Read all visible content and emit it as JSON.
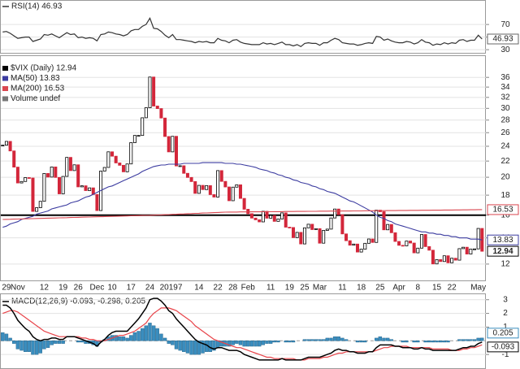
{
  "chart_data": {
    "type": "stock",
    "categories": [
      null,
      "29",
      null,
      null,
      "Nov",
      null,
      null,
      null,
      null,
      null,
      null,
      "12",
      null,
      null,
      null,
      null,
      "19",
      null,
      null,
      null,
      "26",
      null,
      null,
      null,
      null,
      "Dec",
      null,
      null,
      null,
      "10",
      null,
      null,
      null,
      null,
      "17",
      null,
      null,
      null,
      null,
      "24",
      null,
      null,
      null,
      null,
      "2019",
      null,
      null,
      "7",
      null,
      null,
      null,
      null,
      "14",
      null,
      null,
      null,
      null,
      "22",
      null,
      null,
      null,
      "28",
      null,
      null,
      null,
      "Feb",
      null,
      null,
      null,
      null,
      null,
      "11",
      null,
      null,
      null,
      null,
      "19",
      null,
      null,
      null,
      "25",
      null,
      null,
      null,
      "Mar",
      null,
      null,
      null,
      null,
      null,
      "11",
      null,
      null,
      null,
      null,
      "18",
      null,
      null,
      null,
      null,
      "25",
      null,
      null,
      null,
      null,
      "Apr",
      null,
      null,
      null,
      null,
      "8",
      null,
      null,
      null,
      null,
      "15",
      null,
      null,
      null,
      "22",
      null,
      null,
      null,
      null,
      null,
      null,
      "May",
      null
    ],
    "rsi": {
      "title": "RSI(14) 46.93",
      "color": "#333333",
      "ylim": [
        25,
        105
      ],
      "yticks": [
        70,
        50,
        30
      ],
      "values": [
        58,
        59,
        56,
        52,
        48,
        49,
        50,
        50,
        43,
        45,
        47,
        54,
        53,
        55,
        52,
        49,
        53,
        57,
        54,
        55,
        49,
        50,
        48,
        49,
        48,
        44,
        54,
        55,
        58,
        57,
        55,
        54,
        52,
        54,
        60,
        62,
        62,
        67,
        70,
        80,
        64,
        63,
        59,
        53,
        49,
        54,
        46,
        46,
        45,
        44,
        43,
        41,
        43,
        42,
        43,
        41,
        41,
        48,
        45,
        44,
        41,
        45,
        46,
        42,
        40,
        39,
        38,
        38,
        38,
        41,
        39,
        40,
        38,
        40,
        42,
        38,
        38,
        36,
        38,
        35,
        40,
        41,
        40,
        40,
        37,
        41,
        41,
        45,
        48,
        46,
        41,
        40,
        39,
        39,
        37,
        38,
        40,
        41,
        40,
        51,
        50,
        45,
        47,
        44,
        42,
        41,
        41,
        43,
        42,
        39,
        41,
        46,
        42,
        41,
        37,
        39,
        38,
        41,
        39,
        41,
        40,
        45,
        46,
        43,
        45,
        45,
        53,
        46.93
      ]
    },
    "price": {
      "log_scale": true,
      "grid": true,
      "ylim": [
        10.9,
        41
      ],
      "yticks": [
        12,
        14,
        16,
        18,
        20,
        22,
        24,
        26,
        28,
        30,
        32,
        34,
        36
      ],
      "hline": 16,
      "hline_color": "#000000",
      "volume_label": "Volume undef",
      "close": {
        "name": "$VIX (Daily) 12.94",
        "up_color": "#000000",
        "down_color": "#d3263a",
        "values": [
          24.16,
          24.7,
          23.35,
          21.23,
          19.34,
          19.51,
          19.96,
          19.91,
          16.36,
          16.72,
          17.36,
          20.45,
          20.02,
          21.25,
          19.98,
          18.14,
          20.1,
          22.48,
          20.8,
          21.52,
          18.9,
          19.02,
          18.49,
          18.79,
          18.07,
          16.44,
          20.74,
          21.19,
          23.23,
          22.64,
          21.76,
          21.46,
          20.65,
          21.63,
          24.52,
          25.58,
          25.58,
          28.38,
          30.11,
          36.07,
          30.41,
          29.96,
          28.34,
          25.42,
          23.22,
          25.45,
          21.38,
          21.4,
          20.47,
          19.98,
          19.5,
          18.19,
          19.07,
          18.6,
          19.04,
          18.06,
          17.8,
          20.8,
          19.52,
          18.89,
          17.42,
          18.87,
          19.13,
          17.66,
          16.57,
          16.14,
          15.73,
          15.57,
          15.38,
          16.37,
          15.72,
          15.97,
          15.43,
          15.65,
          16.22,
          14.91,
          14.88,
          14.02,
          14.46,
          13.51,
          14.85,
          15.17,
          14.7,
          14.78,
          13.57,
          14.63,
          14.74,
          15.74,
          16.59,
          16.05,
          14.33,
          13.77,
          13.41,
          13.5,
          12.88,
          13.1,
          13.56,
          13.91,
          13.63,
          16.48,
          16.33,
          14.68,
          15.15,
          14.43,
          13.71,
          13.4,
          13.36,
          13.74,
          13.58,
          12.82,
          13.18,
          14.28,
          13.3,
          13.02,
          12.01,
          12.32,
          12.18,
          12.6,
          12.09,
          12.42,
          12.28,
          13.14,
          13.25,
          12.73,
          13.11,
          13.12,
          14.8,
          12.94
        ]
      },
      "series": [
        {
          "name": "MA(50) 13.83",
          "color": "#3c3ca0",
          "values": [
            14.9,
            15.0,
            15.2,
            15.3,
            15.4,
            15.6,
            15.7,
            15.8,
            15.9,
            16.1,
            16.2,
            16.3,
            16.4,
            16.6,
            16.7,
            16.8,
            16.9,
            17.0,
            17.2,
            17.3,
            17.4,
            17.6,
            17.8,
            17.9,
            18.1,
            18.3,
            18.5,
            18.7,
            18.9,
            19.0,
            19.2,
            19.4,
            19.6,
            19.8,
            20.0,
            20.2,
            20.4,
            20.7,
            20.9,
            21.1,
            21.3,
            21.4,
            21.5,
            21.5,
            21.6,
            21.6,
            21.6,
            21.6,
            21.7,
            21.7,
            21.7,
            21.7,
            21.7,
            21.8,
            21.8,
            21.8,
            21.8,
            21.8,
            21.8,
            21.7,
            21.7,
            21.7,
            21.6,
            21.6,
            21.5,
            21.4,
            21.3,
            21.2,
            21.0,
            20.9,
            20.8,
            20.6,
            20.5,
            20.3,
            20.2,
            20.0,
            19.9,
            19.7,
            19.6,
            19.4,
            19.3,
            19.2,
            19.0,
            18.9,
            18.7,
            18.6,
            18.4,
            18.3,
            18.2,
            18.0,
            17.8,
            17.6,
            17.4,
            17.3,
            17.1,
            16.9,
            16.7,
            16.5,
            16.3,
            16.0,
            15.8,
            15.7,
            15.5,
            15.4,
            15.2,
            15.1,
            15.0,
            14.9,
            14.8,
            14.7,
            14.6,
            14.5,
            14.5,
            14.4,
            14.4,
            14.3,
            14.3,
            14.2,
            14.2,
            14.1,
            14.1,
            14.0,
            14.0,
            14.0,
            13.9,
            13.9,
            13.9,
            13.83
          ]
        },
        {
          "name": "MA(200) 16.53",
          "color": "#d9464f",
          "values": [
            15.6,
            15.61,
            15.62,
            15.63,
            15.64,
            15.65,
            15.66,
            15.67,
            15.68,
            15.69,
            15.7,
            15.71,
            15.72,
            15.73,
            15.74,
            15.75,
            15.76,
            15.77,
            15.78,
            15.79,
            15.8,
            15.81,
            15.82,
            15.83,
            15.84,
            15.85,
            15.86,
            15.87,
            15.88,
            15.89,
            15.9,
            15.91,
            15.92,
            15.93,
            15.94,
            15.95,
            15.96,
            15.97,
            15.98,
            15.99,
            16.0,
            16.02,
            16.03,
            16.05,
            16.06,
            16.08,
            16.09,
            16.11,
            16.12,
            16.14,
            16.15,
            16.17,
            16.18,
            16.2,
            16.21,
            16.23,
            16.24,
            16.26,
            16.27,
            16.29,
            16.3,
            16.3,
            16.3,
            16.31,
            16.31,
            16.31,
            16.32,
            16.32,
            16.32,
            16.33,
            16.33,
            16.33,
            16.34,
            16.34,
            16.34,
            16.35,
            16.35,
            16.35,
            16.36,
            16.36,
            16.36,
            16.37,
            16.37,
            16.37,
            16.38,
            16.38,
            16.38,
            16.39,
            16.39,
            16.39,
            16.4,
            16.4,
            16.4,
            16.41,
            16.41,
            16.41,
            16.42,
            16.42,
            16.42,
            16.43,
            16.43,
            16.43,
            16.44,
            16.44,
            16.44,
            16.45,
            16.45,
            16.45,
            16.46,
            16.46,
            16.46,
            16.47,
            16.47,
            16.47,
            16.48,
            16.48,
            16.48,
            16.49,
            16.49,
            16.49,
            16.5,
            16.5,
            16.51,
            16.51,
            16.52,
            16.52,
            16.53,
            16.53
          ]
        }
      ]
    },
    "macd": {
      "title": "MACD(12,26,9) -0.093, -0.298, 0.205",
      "ylim": [
        -2,
        3.4
      ],
      "yticks": [
        3,
        2,
        1,
        -1
      ],
      "macd": {
        "color": "#000000",
        "values": [
          2.6,
          2.6,
          2.4,
          2.0,
          1.5,
          1.2,
          0.9,
          0.7,
          0.3,
          0.1,
          0.0,
          0.1,
          0.1,
          0.2,
          0.2,
          0.1,
          0.1,
          0.3,
          0.3,
          0.3,
          0.2,
          0.1,
          0.0,
          -0.1,
          -0.2,
          -0.4,
          -0.1,
          0.1,
          0.4,
          0.6,
          0.7,
          0.7,
          0.7,
          0.7,
          1.0,
          1.3,
          1.6,
          2.0,
          2.4,
          3.0,
          3.1,
          3.1,
          2.9,
          2.6,
          2.2,
          2.0,
          1.6,
          1.3,
          1.0,
          0.7,
          0.4,
          0.1,
          -0.1,
          -0.2,
          -0.3,
          -0.5,
          -0.6,
          -0.5,
          -0.5,
          -0.6,
          -0.7,
          -0.7,
          -0.7,
          -0.8,
          -1.0,
          -1.1,
          -1.2,
          -1.3,
          -1.4,
          -1.4,
          -1.4,
          -1.4,
          -1.4,
          -1.4,
          -1.3,
          -1.4,
          -1.4,
          -1.4,
          -1.4,
          -1.4,
          -1.3,
          -1.2,
          -1.2,
          -1.2,
          -1.2,
          -1.1,
          -1.0,
          -0.9,
          -0.7,
          -0.6,
          -0.7,
          -0.7,
          -0.8,
          -0.8,
          -0.9,
          -0.9,
          -0.9,
          -0.8,
          -0.8,
          -0.5,
          -0.3,
          -0.3,
          -0.3,
          -0.3,
          -0.4,
          -0.4,
          -0.5,
          -0.5,
          -0.5,
          -0.6,
          -0.6,
          -0.5,
          -0.6,
          -0.6,
          -0.7,
          -0.7,
          -0.7,
          -0.7,
          -0.7,
          -0.7,
          -0.7,
          -0.6,
          -0.5,
          -0.5,
          -0.4,
          -0.4,
          -0.2,
          -0.093
        ]
      },
      "signal": {
        "color": "#e8444a",
        "values": [
          2.0,
          2.1,
          2.2,
          2.2,
          2.1,
          1.9,
          1.7,
          1.5,
          1.3,
          1.1,
          0.9,
          0.7,
          0.6,
          0.5,
          0.4,
          0.3,
          0.3,
          0.3,
          0.3,
          0.3,
          0.3,
          0.2,
          0.2,
          0.1,
          0.1,
          0.0,
          0.0,
          0.0,
          0.1,
          0.2,
          0.3,
          0.4,
          0.4,
          0.5,
          0.6,
          0.7,
          0.9,
          1.1,
          1.3,
          1.7,
          2.0,
          2.2,
          2.4,
          2.4,
          2.4,
          2.3,
          2.2,
          2.0,
          1.8,
          1.6,
          1.4,
          1.1,
          0.9,
          0.7,
          0.5,
          0.3,
          0.1,
          0.0,
          -0.1,
          -0.2,
          -0.3,
          -0.4,
          -0.5,
          -0.5,
          -0.6,
          -0.7,
          -0.8,
          -0.9,
          -1.0,
          -1.1,
          -1.2,
          -1.2,
          -1.3,
          -1.3,
          -1.3,
          -1.3,
          -1.3,
          -1.3,
          -1.4,
          -1.4,
          -1.4,
          -1.3,
          -1.3,
          -1.3,
          -1.3,
          -1.2,
          -1.2,
          -1.1,
          -1.0,
          -0.9,
          -0.9,
          -0.8,
          -0.8,
          -0.8,
          -0.8,
          -0.8,
          -0.8,
          -0.8,
          -0.8,
          -0.7,
          -0.6,
          -0.5,
          -0.5,
          -0.4,
          -0.4,
          -0.4,
          -0.4,
          -0.4,
          -0.5,
          -0.5,
          -0.5,
          -0.5,
          -0.5,
          -0.5,
          -0.6,
          -0.6,
          -0.6,
          -0.6,
          -0.6,
          -0.7,
          -0.7,
          -0.7,
          -0.6,
          -0.6,
          -0.5,
          -0.5,
          -0.4,
          -0.298
        ]
      },
      "histogram": {
        "color": "#3a8dbe",
        "values": [
          0.6,
          0.5,
          0.2,
          -0.2,
          -0.6,
          -0.7,
          -0.8,
          -0.8,
          -1.0,
          -1.0,
          -0.9,
          -0.6,
          -0.5,
          -0.3,
          -0.2,
          -0.2,
          -0.2,
          0.0,
          0.0,
          0.0,
          -0.1,
          -0.1,
          -0.2,
          -0.2,
          -0.3,
          -0.4,
          -0.1,
          0.1,
          0.3,
          0.4,
          0.4,
          0.3,
          0.3,
          0.2,
          0.4,
          0.6,
          0.7,
          0.9,
          1.1,
          1.3,
          1.1,
          0.9,
          0.5,
          0.2,
          -0.2,
          -0.3,
          -0.6,
          -0.7,
          -0.8,
          -0.9,
          -1.0,
          -1.0,
          -1.0,
          -0.9,
          -0.8,
          -0.8,
          -0.7,
          -0.5,
          -0.4,
          -0.4,
          -0.4,
          -0.3,
          -0.2,
          -0.3,
          -0.4,
          -0.4,
          -0.4,
          -0.4,
          -0.4,
          -0.3,
          -0.2,
          -0.2,
          -0.1,
          -0.1,
          0.0,
          -0.1,
          -0.1,
          -0.1,
          0.0,
          0.0,
          0.1,
          0.1,
          0.1,
          0.1,
          0.1,
          0.1,
          0.2,
          0.2,
          0.3,
          0.3,
          0.2,
          0.1,
          0.0,
          0.0,
          -0.1,
          -0.1,
          -0.1,
          0.0,
          0.0,
          0.2,
          0.3,
          0.2,
          0.2,
          0.1,
          0.0,
          0.0,
          -0.1,
          -0.1,
          0.0,
          -0.1,
          -0.1,
          0.0,
          -0.1,
          -0.1,
          -0.1,
          -0.1,
          -0.1,
          -0.1,
          -0.1,
          0.0,
          0.0,
          0.1,
          0.1,
          0.1,
          0.1,
          0.1,
          0.2,
          0.205
        ]
      }
    }
  }
}
